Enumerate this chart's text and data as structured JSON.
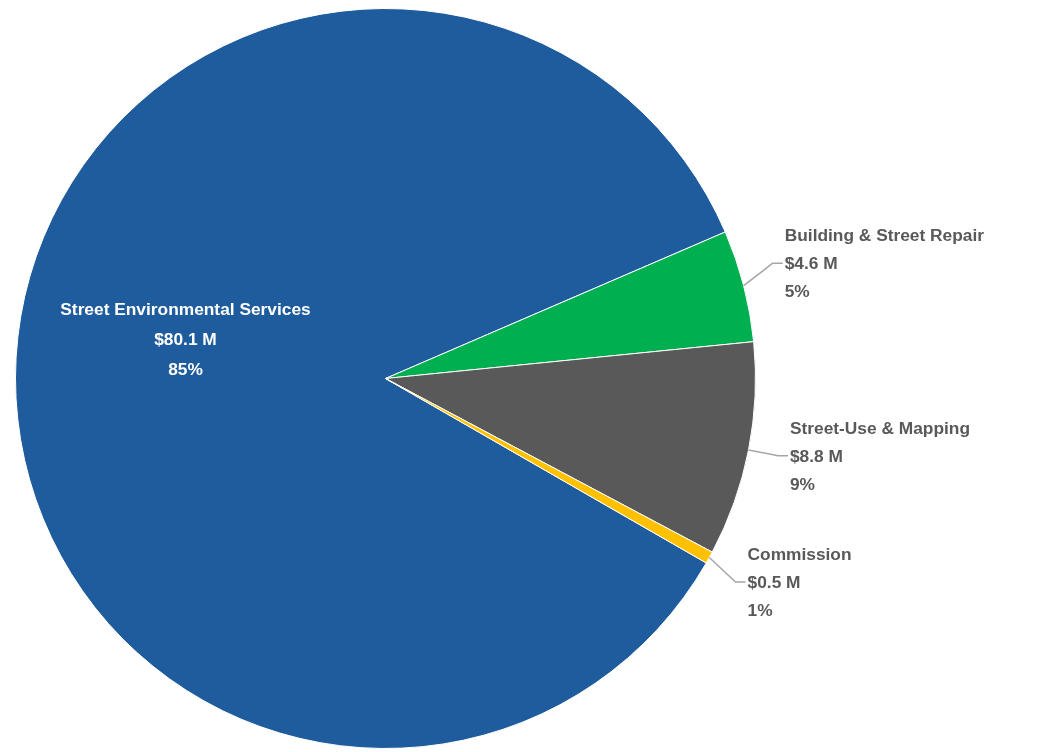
{
  "chart_data": {
    "type": "pie",
    "categories": [
      "Street Environmental Services",
      "Building & Street Repair",
      "Street-Use & Mapping",
      "Commission"
    ],
    "values": [
      80.1,
      4.6,
      8.8,
      0.5
    ],
    "colors": [
      "#1f5c9e",
      "#00b050",
      "#595959",
      "#ffc000"
    ],
    "value_labels": [
      "$80.1 M\n85%",
      "$4.6 M\n5%",
      "$8.8 M\n9%",
      "$0.5 M\n1%"
    ]
  }
}
